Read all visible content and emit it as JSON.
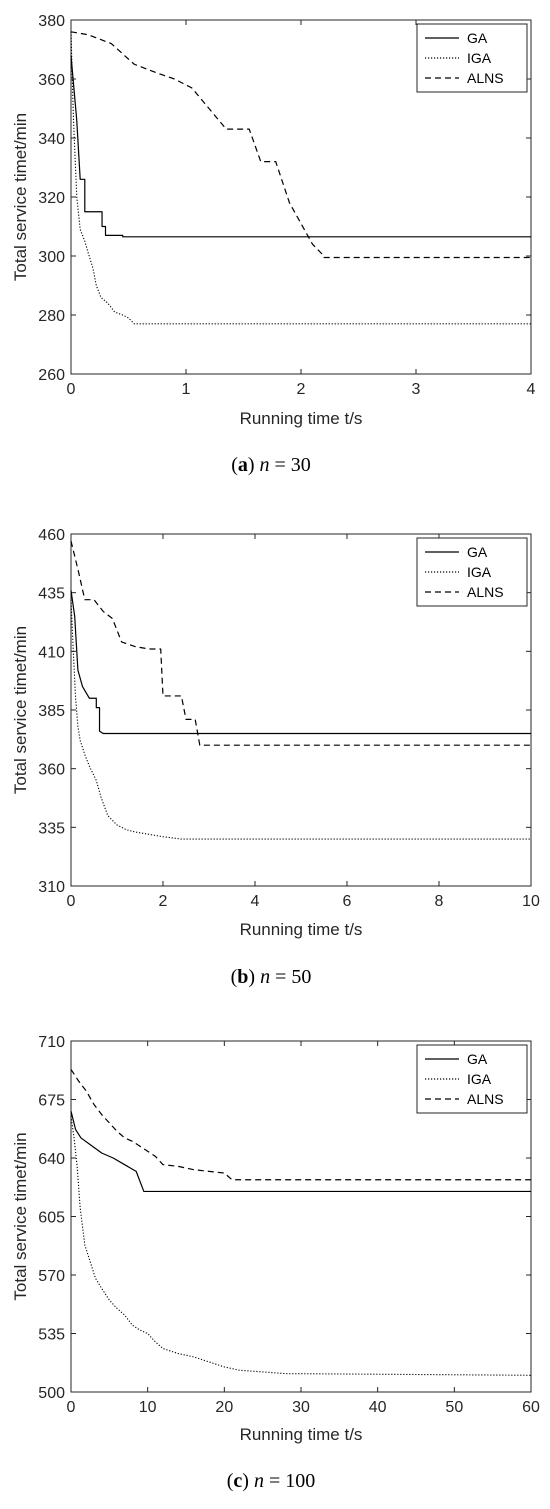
{
  "chart_data": [
    {
      "type": "line",
      "xlabel": "Running time t/s",
      "ylabel": "Total service timet/min",
      "xlim": [
        0,
        4
      ],
      "ylim": [
        260,
        380
      ],
      "xticks": [
        "0",
        "1",
        "2",
        "3",
        "4"
      ],
      "yticks": [
        "260",
        "280",
        "300",
        "320",
        "340",
        "360",
        "380"
      ],
      "grid": false,
      "legend_position": "top-right",
      "caption": {
        "open": "(",
        "letter": "a",
        "close": ")",
        "var": "n",
        "eq": " = 30"
      },
      "series": [
        {
          "name": "GA",
          "style": "solid",
          "points": [
            [
              0,
              368
            ],
            [
              0.05,
              346
            ],
            [
              0.08,
              326
            ],
            [
              0.12,
              326
            ],
            [
              0.12,
              315
            ],
            [
              0.27,
              315
            ],
            [
              0.27,
              310
            ],
            [
              0.3,
              310
            ],
            [
              0.3,
              307
            ],
            [
              0.45,
              307
            ],
            [
              0.45,
              306.5
            ],
            [
              4,
              306.5
            ]
          ]
        },
        {
          "name": "IGA",
          "style": "dotted",
          "points": [
            [
              0,
              376
            ],
            [
              0.02,
              348
            ],
            [
              0.05,
              320
            ],
            [
              0.08,
              309
            ],
            [
              0.12,
              305
            ],
            [
              0.15,
              301
            ],
            [
              0.19,
              296
            ],
            [
              0.22,
              290
            ],
            [
              0.26,
              286
            ],
            [
              0.32,
              284
            ],
            [
              0.38,
              281
            ],
            [
              0.45,
              280
            ],
            [
              0.5,
              279
            ],
            [
              0.55,
              277
            ],
            [
              4,
              277
            ]
          ]
        },
        {
          "name": "ALNS",
          "style": "dashed",
          "points": [
            [
              0,
              376
            ],
            [
              0.15,
              375
            ],
            [
              0.35,
              372
            ],
            [
              0.55,
              365
            ],
            [
              0.75,
              362
            ],
            [
              0.9,
              360
            ],
            [
              1.05,
              357
            ],
            [
              1.2,
              350
            ],
            [
              1.35,
              343
            ],
            [
              1.55,
              343
            ],
            [
              1.65,
              332
            ],
            [
              1.78,
              332
            ],
            [
              1.9,
              318
            ],
            [
              2.0,
              311
            ],
            [
              2.1,
              304
            ],
            [
              2.2,
              300
            ],
            [
              2.2,
              299.5
            ],
            [
              4,
              299.5
            ]
          ]
        }
      ]
    },
    {
      "type": "line",
      "xlabel": "Running time t/s",
      "ylabel": "Total service timet/min",
      "xlim": [
        0,
        10
      ],
      "ylim": [
        310,
        460
      ],
      "xticks": [
        "0",
        "2",
        "4",
        "6",
        "8",
        "10"
      ],
      "yticks": [
        "310",
        "335",
        "360",
        "385",
        "410",
        "435",
        "460"
      ],
      "grid": false,
      "legend_position": "top-right",
      "caption": {
        "open": "(",
        "letter": "b",
        "close": ")",
        "var": "n",
        "eq": " = 50"
      },
      "series": [
        {
          "name": "GA",
          "style": "solid",
          "points": [
            [
              0,
              436
            ],
            [
              0.08,
              425
            ],
            [
              0.15,
              402
            ],
            [
              0.25,
              395
            ],
            [
              0.4,
              390
            ],
            [
              0.55,
              390
            ],
            [
              0.55,
              386
            ],
            [
              0.62,
              386
            ],
            [
              0.62,
              376
            ],
            [
              0.7,
              375
            ],
            [
              10,
              375
            ]
          ]
        },
        {
          "name": "IGA",
          "style": "dotted",
          "points": [
            [
              0,
              432
            ],
            [
              0.05,
              410
            ],
            [
              0.1,
              390
            ],
            [
              0.15,
              378
            ],
            [
              0.2,
              372
            ],
            [
              0.3,
              366
            ],
            [
              0.4,
              361
            ],
            [
              0.55,
              355
            ],
            [
              0.65,
              348
            ],
            [
              0.8,
              340
            ],
            [
              1.0,
              336
            ],
            [
              1.2,
              334
            ],
            [
              1.4,
              333
            ],
            [
              1.7,
              332
            ],
            [
              2.0,
              331
            ],
            [
              2.4,
              330
            ],
            [
              10,
              330
            ]
          ]
        },
        {
          "name": "ALNS",
          "style": "dashed",
          "points": [
            [
              0,
              457
            ],
            [
              0.15,
              445
            ],
            [
              0.3,
              432
            ],
            [
              0.5,
              432
            ],
            [
              0.7,
              427
            ],
            [
              0.9,
              424
            ],
            [
              1.1,
              414
            ],
            [
              1.4,
              412
            ],
            [
              1.7,
              411
            ],
            [
              1.95,
              411
            ],
            [
              2.0,
              391
            ],
            [
              2.4,
              391
            ],
            [
              2.5,
              381
            ],
            [
              2.7,
              381
            ],
            [
              2.8,
              370
            ],
            [
              10,
              370
            ]
          ]
        }
      ]
    },
    {
      "type": "line",
      "xlabel": "Running time t/s",
      "ylabel": "Total service timet/min",
      "xlim": [
        0,
        60
      ],
      "ylim": [
        500,
        710
      ],
      "xticks": [
        "0",
        "10",
        "20",
        "30",
        "40",
        "50",
        "60"
      ],
      "yticks": [
        "500",
        "535",
        "570",
        "605",
        "640",
        "675",
        "710"
      ],
      "grid": false,
      "legend_position": "top-right",
      "caption": {
        "open": "(",
        "letter": "c",
        "close": ")",
        "var": "n",
        "eq": " = 100"
      },
      "series": [
        {
          "name": "GA",
          "style": "solid",
          "points": [
            [
              0,
              668
            ],
            [
              0.6,
              657
            ],
            [
              1.3,
              652
            ],
            [
              2.5,
              648
            ],
            [
              4,
              643
            ],
            [
              5.5,
              640
            ],
            [
              7,
              636
            ],
            [
              8.5,
              632
            ],
            [
              9.5,
              620
            ],
            [
              60,
              620
            ]
          ]
        },
        {
          "name": "IGA",
          "style": "dotted",
          "points": [
            [
              0,
              665
            ],
            [
              0.4,
              652
            ],
            [
              0.8,
              635
            ],
            [
              1.2,
              610
            ],
            [
              1.8,
              588
            ],
            [
              2.5,
              578
            ],
            [
              3.2,
              568
            ],
            [
              4,
              562
            ],
            [
              5,
              555
            ],
            [
              6,
              550
            ],
            [
              7,
              546
            ],
            [
              8,
              540
            ],
            [
              9,
              537
            ],
            [
              10,
              535
            ],
            [
              11,
              530
            ],
            [
              12,
              526
            ],
            [
              14,
              523
            ],
            [
              16,
              521
            ],
            [
              18,
              518
            ],
            [
              20,
              515
            ],
            [
              22,
              513
            ],
            [
              25,
              512
            ],
            [
              28,
              511
            ],
            [
              60,
              510
            ]
          ]
        },
        {
          "name": "ALNS",
          "style": "dashed",
          "points": [
            [
              0,
              693
            ],
            [
              1,
              686
            ],
            [
              2,
              680
            ],
            [
              3,
              672
            ],
            [
              4,
              666
            ],
            [
              5,
              661
            ],
            [
              6,
              656
            ],
            [
              7,
              652
            ],
            [
              8,
              650
            ],
            [
              9,
              647
            ],
            [
              10,
              644
            ],
            [
              11,
              641
            ],
            [
              12,
              636
            ],
            [
              14,
              635
            ],
            [
              16,
              633
            ],
            [
              18,
              632
            ],
            [
              20,
              631
            ],
            [
              21,
              627
            ],
            [
              60,
              627
            ]
          ]
        }
      ]
    }
  ]
}
